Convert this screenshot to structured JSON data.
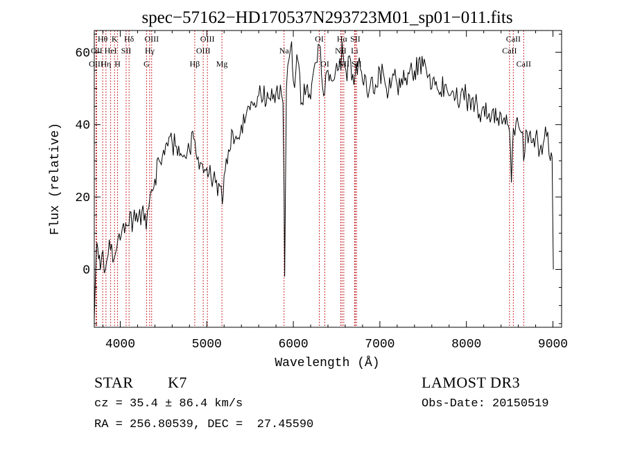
{
  "chart_data": {
    "type": "line",
    "title": "spec−57162−HD170537N293723M01_sp01−011.fits",
    "xlabel": "Wavelength (Å)",
    "ylabel": "Flux (relative)",
    "xlim": [
      3700,
      9100
    ],
    "ylim": [
      -16,
      66
    ],
    "xticks": [
      4000,
      5000,
      6000,
      7000,
      8000,
      9000
    ],
    "yticks": [
      0,
      20,
      40,
      60
    ],
    "grid": false,
    "series": [
      {
        "x": [
          3700,
          3720,
          3740,
          3760,
          3780,
          3800,
          3830,
          3860,
          3900,
          3930,
          3960,
          4000,
          4050,
          4100,
          4150,
          4200,
          4250,
          4300,
          4330,
          4360,
          4400,
          4450,
          4500,
          4550,
          4600,
          4650,
          4700,
          4750,
          4800,
          4850,
          4900,
          4950,
          5000,
          5050,
          5100,
          5150,
          5180,
          5200,
          5250,
          5300,
          5350,
          5400,
          5450,
          5500,
          5550,
          5600,
          5650,
          5700,
          5750,
          5800,
          5850,
          5880,
          5893,
          5900,
          5920,
          5950,
          5980,
          6000,
          6030,
          6050,
          6100,
          6150,
          6200,
          6250,
          6300,
          6350,
          6400,
          6450,
          6500,
          6550,
          6563,
          6580,
          6620,
          6650,
          6700,
          6716,
          6750,
          6800,
          6850,
          6900,
          6950,
          7000,
          7050,
          7100,
          7150,
          7200,
          7300,
          7400,
          7500,
          7550,
          7600,
          7650,
          7700,
          7750,
          7800,
          7850,
          7900,
          7950,
          8000,
          8050,
          8100,
          8150,
          8200,
          8250,
          8300,
          8350,
          8400,
          8450,
          8498,
          8520,
          8542,
          8560,
          8600,
          8650,
          8662,
          8700,
          8750,
          8800,
          8850,
          8900,
          8940,
          8970,
          8990,
          9000,
          9005
        ],
        "y": [
          -14,
          3,
          6,
          4,
          2,
          5,
          0,
          4,
          7,
          3,
          6,
          8,
          10,
          12,
          14,
          13,
          16,
          11,
          17,
          22,
          25,
          30,
          33,
          34,
          35,
          34,
          32,
          31,
          33,
          36,
          31,
          29,
          28,
          25,
          24,
          23,
          18,
          26,
          33,
          38,
          36,
          40,
          42,
          44,
          46,
          48,
          47,
          49,
          50,
          49,
          51,
          46,
          22,
          -2,
          50,
          58,
          63,
          52,
          55,
          58,
          46,
          50,
          47,
          57,
          62,
          48,
          55,
          52,
          57,
          55,
          63,
          58,
          52,
          59,
          51,
          54,
          57,
          52,
          49,
          53,
          51,
          55,
          53,
          49,
          54,
          51,
          53,
          55,
          56,
          53,
          50,
          52,
          49,
          51,
          48,
          49,
          46,
          50,
          47,
          44,
          46,
          43,
          45,
          42,
          44,
          41,
          43,
          40,
          38,
          24,
          39,
          37,
          40,
          38,
          30,
          38,
          35,
          37,
          33,
          36,
          38,
          30,
          31,
          10,
          0
        ]
      }
    ],
    "line_color": "#000000",
    "annotations": [
      {
        "text": "Hθ",
        "x": 3797,
        "tier": 1
      },
      {
        "text": "OII",
        "x": 3727,
        "tier": 2
      },
      {
        "text": "OIII",
        "x": 3720,
        "tier": 3
      },
      {
        "text": "K",
        "x": 3934,
        "tier": 1
      },
      {
        "text": "HeI",
        "x": 3889,
        "tier": 2
      },
      {
        "text": "Hη",
        "x": 3835,
        "tier": 3
      },
      {
        "text": "SII",
        "x": 4068,
        "tier": 2
      },
      {
        "text": "H",
        "x": 3969,
        "tier": 3
      },
      {
        "text": "Hδ",
        "x": 4102,
        "tier": 1
      },
      {
        "text": "OIII",
        "x": 4363,
        "tier": 1
      },
      {
        "text": "Hγ",
        "x": 4340,
        "tier": 2
      },
      {
        "text": "G",
        "x": 4304,
        "tier": 3
      },
      {
        "text": "OIII",
        "x": 5007,
        "tier": 1
      },
      {
        "text": "OIII",
        "x": 4959,
        "tier": 2
      },
      {
        "text": "Hβ",
        "x": 4861,
        "tier": 3
      },
      {
        "text": "Mg",
        "x": 5175,
        "tier": 3
      },
      {
        "text": "Na",
        "x": 5893,
        "tier": 2
      },
      {
        "text": "OI",
        "x": 6300,
        "tier": 1
      },
      {
        "text": "OI",
        "x": 6364,
        "tier": 3
      },
      {
        "text": "Hα",
        "x": 6563,
        "tier": 1
      },
      {
        "text": "NII",
        "x": 6548,
        "tier": 2
      },
      {
        "text": "NII",
        "x": 6583,
        "tier": 3
      },
      {
        "text": "SII",
        "x": 6716,
        "tier": 1
      },
      {
        "text": "Li",
        "x": 6708,
        "tier": 2
      },
      {
        "text": "SII",
        "x": 6731,
        "tier": 3
      },
      {
        "text": "CaII",
        "x": 8542,
        "tier": 1
      },
      {
        "text": "CaII",
        "x": 8498,
        "tier": 2
      },
      {
        "text": "CaII",
        "x": 8662,
        "tier": 3
      }
    ],
    "line_markers": [
      3720,
      3727,
      3797,
      3835,
      3889,
      3934,
      3969,
      4068,
      4102,
      4304,
      4340,
      4363,
      4861,
      4959,
      5007,
      5175,
      5893,
      6300,
      6364,
      6548,
      6563,
      6583,
      6708,
      6716,
      6731,
      8498,
      8542,
      8662
    ],
    "marker_color": "#c8282d"
  },
  "info": {
    "object_class": "STAR",
    "subclass": "K7",
    "survey": "LAMOST DR3",
    "redshift_line": "cz = 35.4 ± 86.4 km/s",
    "obs_date_line": "Obs-Date: 20150519",
    "coords_line": "RA = 256.80539, DEC =  27.45590"
  }
}
